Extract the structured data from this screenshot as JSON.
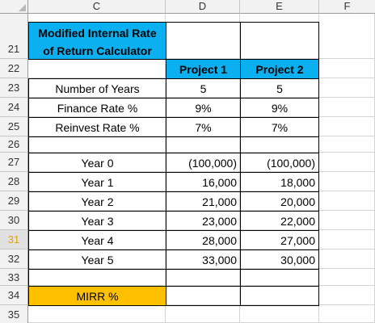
{
  "columns": [
    "C",
    "D",
    "E",
    "F"
  ],
  "rows": [
    "21",
    "22",
    "23",
    "24",
    "25",
    "26",
    "27",
    "28",
    "29",
    "30",
    "31",
    "32",
    "33",
    "34",
    "35"
  ],
  "selected_row": "31",
  "title_line1": "Modified Internal Rate",
  "title_line2": "of Return Calculator",
  "projects": [
    "Project 1",
    "Project 2"
  ],
  "inputs": [
    {
      "label": "Number of Years",
      "p1": "5",
      "p2": "5"
    },
    {
      "label": "Finance Rate %",
      "p1": "9%",
      "p2": "9%"
    },
    {
      "label": "Reinvest Rate %",
      "p1": "7%",
      "p2": "7%"
    }
  ],
  "cashflows": [
    {
      "label": "Year 0",
      "p1": "(100,000)",
      "p2": "(100,000)"
    },
    {
      "label": "Year 1",
      "p1": "16,000",
      "p2": "18,000"
    },
    {
      "label": "Year 2",
      "p1": "21,000",
      "p2": "20,000"
    },
    {
      "label": "Year 3",
      "p1": "23,000",
      "p2": "22,000"
    },
    {
      "label": "Year 4",
      "p1": "28,000",
      "p2": "27,000"
    },
    {
      "label": "Year 5",
      "p1": "33,000",
      "p2": "30,000"
    }
  ],
  "mirr_label": "MIRR %",
  "colors": {
    "header_blue": "#0ab0f0",
    "mirr_orange": "#ffc000",
    "selected_row_text": "#e2a100"
  }
}
